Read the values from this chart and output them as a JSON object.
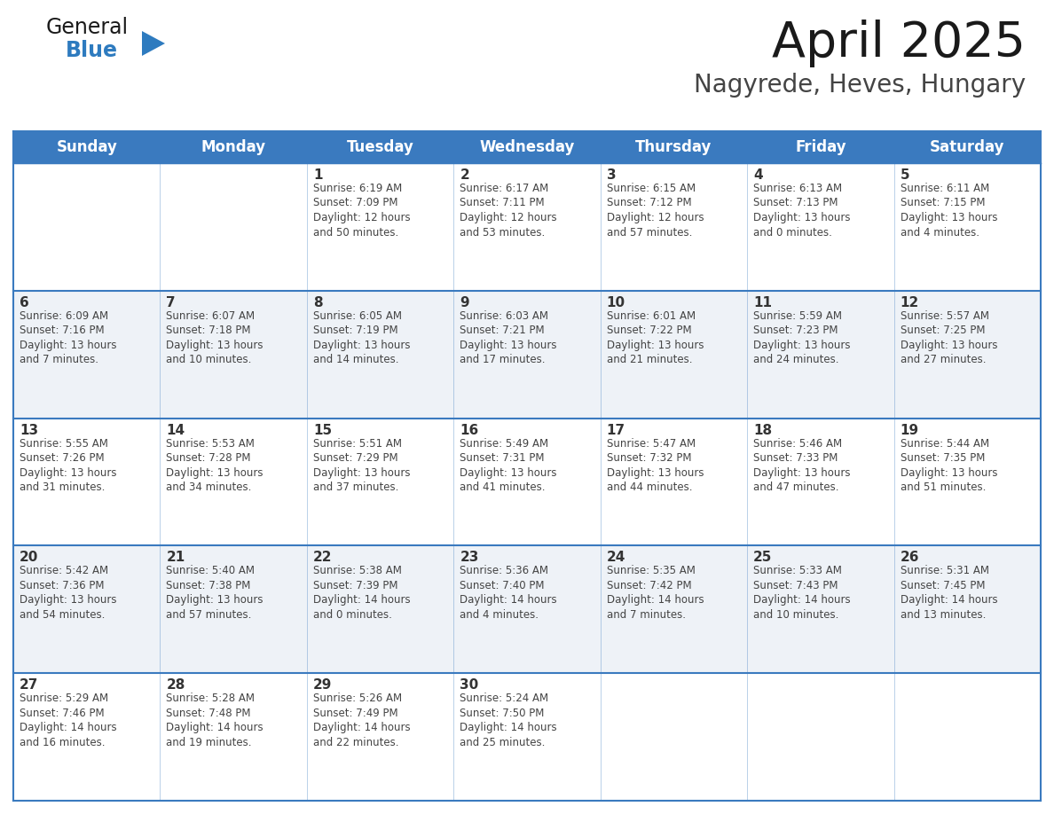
{
  "title": "April 2025",
  "subtitle": "Nagyrede, Heves, Hungary",
  "header_color": "#3a7abf",
  "header_text_color": "#ffffff",
  "row_bg_white": "#ffffff",
  "row_bg_light": "#f0f4f8",
  "border_color": "#3a7abf",
  "text_color": "#333333",
  "info_color": "#444444",
  "days_of_week": [
    "Sunday",
    "Monday",
    "Tuesday",
    "Wednesday",
    "Thursday",
    "Friday",
    "Saturday"
  ],
  "weeks": [
    [
      {
        "day": "",
        "info": ""
      },
      {
        "day": "",
        "info": ""
      },
      {
        "day": "1",
        "info": "Sunrise: 6:19 AM\nSunset: 7:09 PM\nDaylight: 12 hours\nand 50 minutes."
      },
      {
        "day": "2",
        "info": "Sunrise: 6:17 AM\nSunset: 7:11 PM\nDaylight: 12 hours\nand 53 minutes."
      },
      {
        "day": "3",
        "info": "Sunrise: 6:15 AM\nSunset: 7:12 PM\nDaylight: 12 hours\nand 57 minutes."
      },
      {
        "day": "4",
        "info": "Sunrise: 6:13 AM\nSunset: 7:13 PM\nDaylight: 13 hours\nand 0 minutes."
      },
      {
        "day": "5",
        "info": "Sunrise: 6:11 AM\nSunset: 7:15 PM\nDaylight: 13 hours\nand 4 minutes."
      }
    ],
    [
      {
        "day": "6",
        "info": "Sunrise: 6:09 AM\nSunset: 7:16 PM\nDaylight: 13 hours\nand 7 minutes."
      },
      {
        "day": "7",
        "info": "Sunrise: 6:07 AM\nSunset: 7:18 PM\nDaylight: 13 hours\nand 10 minutes."
      },
      {
        "day": "8",
        "info": "Sunrise: 6:05 AM\nSunset: 7:19 PM\nDaylight: 13 hours\nand 14 minutes."
      },
      {
        "day": "9",
        "info": "Sunrise: 6:03 AM\nSunset: 7:21 PM\nDaylight: 13 hours\nand 17 minutes."
      },
      {
        "day": "10",
        "info": "Sunrise: 6:01 AM\nSunset: 7:22 PM\nDaylight: 13 hours\nand 21 minutes."
      },
      {
        "day": "11",
        "info": "Sunrise: 5:59 AM\nSunset: 7:23 PM\nDaylight: 13 hours\nand 24 minutes."
      },
      {
        "day": "12",
        "info": "Sunrise: 5:57 AM\nSunset: 7:25 PM\nDaylight: 13 hours\nand 27 minutes."
      }
    ],
    [
      {
        "day": "13",
        "info": "Sunrise: 5:55 AM\nSunset: 7:26 PM\nDaylight: 13 hours\nand 31 minutes."
      },
      {
        "day": "14",
        "info": "Sunrise: 5:53 AM\nSunset: 7:28 PM\nDaylight: 13 hours\nand 34 minutes."
      },
      {
        "day": "15",
        "info": "Sunrise: 5:51 AM\nSunset: 7:29 PM\nDaylight: 13 hours\nand 37 minutes."
      },
      {
        "day": "16",
        "info": "Sunrise: 5:49 AM\nSunset: 7:31 PM\nDaylight: 13 hours\nand 41 minutes."
      },
      {
        "day": "17",
        "info": "Sunrise: 5:47 AM\nSunset: 7:32 PM\nDaylight: 13 hours\nand 44 minutes."
      },
      {
        "day": "18",
        "info": "Sunrise: 5:46 AM\nSunset: 7:33 PM\nDaylight: 13 hours\nand 47 minutes."
      },
      {
        "day": "19",
        "info": "Sunrise: 5:44 AM\nSunset: 7:35 PM\nDaylight: 13 hours\nand 51 minutes."
      }
    ],
    [
      {
        "day": "20",
        "info": "Sunrise: 5:42 AM\nSunset: 7:36 PM\nDaylight: 13 hours\nand 54 minutes."
      },
      {
        "day": "21",
        "info": "Sunrise: 5:40 AM\nSunset: 7:38 PM\nDaylight: 13 hours\nand 57 minutes."
      },
      {
        "day": "22",
        "info": "Sunrise: 5:38 AM\nSunset: 7:39 PM\nDaylight: 14 hours\nand 0 minutes."
      },
      {
        "day": "23",
        "info": "Sunrise: 5:36 AM\nSunset: 7:40 PM\nDaylight: 14 hours\nand 4 minutes."
      },
      {
        "day": "24",
        "info": "Sunrise: 5:35 AM\nSunset: 7:42 PM\nDaylight: 14 hours\nand 7 minutes."
      },
      {
        "day": "25",
        "info": "Sunrise: 5:33 AM\nSunset: 7:43 PM\nDaylight: 14 hours\nand 10 minutes."
      },
      {
        "day": "26",
        "info": "Sunrise: 5:31 AM\nSunset: 7:45 PM\nDaylight: 14 hours\nand 13 minutes."
      }
    ],
    [
      {
        "day": "27",
        "info": "Sunrise: 5:29 AM\nSunset: 7:46 PM\nDaylight: 14 hours\nand 16 minutes."
      },
      {
        "day": "28",
        "info": "Sunrise: 5:28 AM\nSunset: 7:48 PM\nDaylight: 14 hours\nand 19 minutes."
      },
      {
        "day": "29",
        "info": "Sunrise: 5:26 AM\nSunset: 7:49 PM\nDaylight: 14 hours\nand 22 minutes."
      },
      {
        "day": "30",
        "info": "Sunrise: 5:24 AM\nSunset: 7:50 PM\nDaylight: 14 hours\nand 25 minutes."
      },
      {
        "day": "",
        "info": ""
      },
      {
        "day": "",
        "info": ""
      },
      {
        "day": "",
        "info": ""
      }
    ]
  ],
  "logo_general_color": "#1a1a1a",
  "logo_blue_color": "#2e7bbf",
  "logo_triangle_color": "#2e7bbf",
  "title_color": "#1a1a1a",
  "subtitle_color": "#444444"
}
